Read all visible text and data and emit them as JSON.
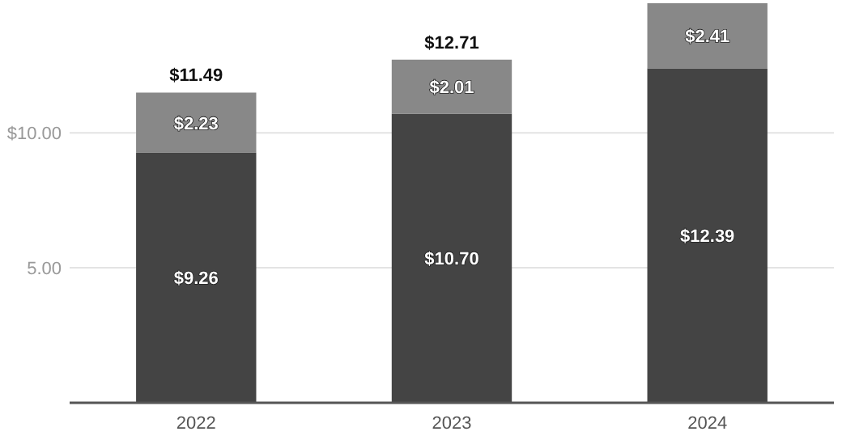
{
  "chart_data": {
    "type": "bar",
    "stacked": true,
    "categories": [
      "2022",
      "2023",
      "2024"
    ],
    "series": [
      {
        "color": "#444444",
        "values": [
          9.26,
          10.7,
          12.39
        ],
        "value_labels": [
          "$9.26",
          "$10.70",
          "$12.39"
        ]
      },
      {
        "color": "#888888",
        "values": [
          2.23,
          2.01,
          2.41
        ],
        "value_labels": [
          "$2.23",
          "$2.01",
          "$2.41"
        ]
      }
    ],
    "totals": [
      "$11.49",
      "$12.71",
      null
    ],
    "ylim": [
      0,
      14.8
    ],
    "yticks": [
      {
        "value": 5,
        "label": "5.00"
      },
      {
        "value": 10,
        "label": "$10.00"
      }
    ],
    "grid": "y"
  }
}
